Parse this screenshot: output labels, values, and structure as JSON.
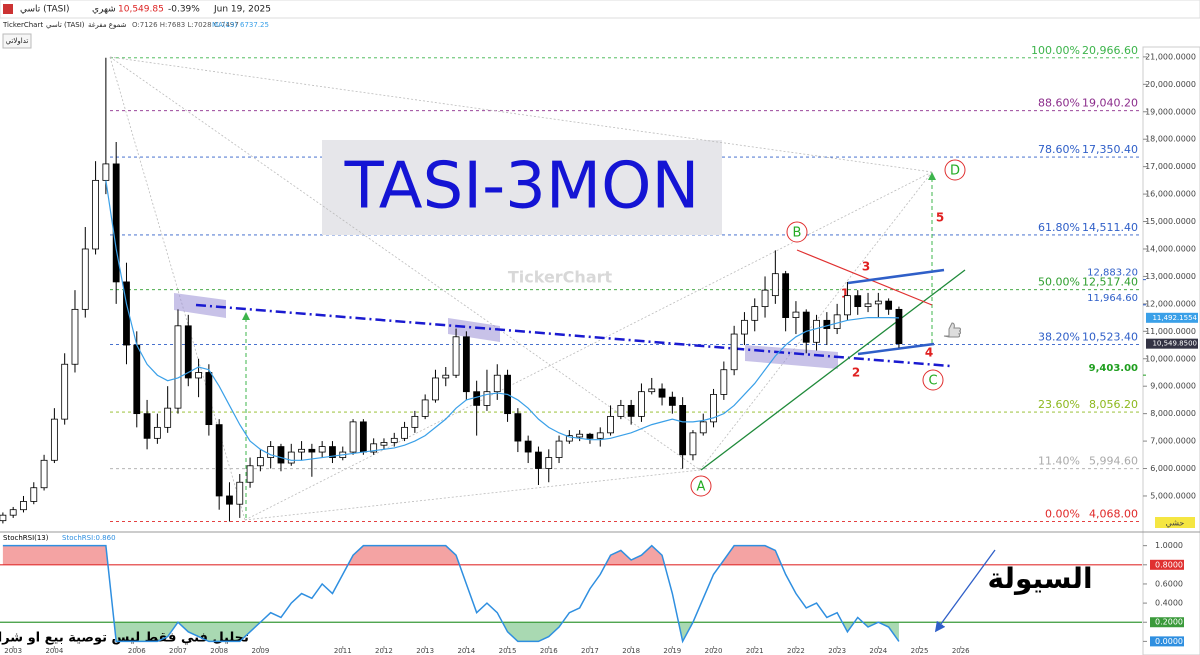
{
  "header": {
    "symbol": "تاسي (TASI)",
    "period": "شهري",
    "price": "10,549.85",
    "change": "-0.39%",
    "date": "Jun 19, 2025",
    "source": "TickerChart",
    "name": "تاسي (TASI)",
    "style": "شموع مفرغة",
    "ohlc": "O:7126 H:7683 L:7028 C:7497",
    "ma_value": "6737.25",
    "button": "تداولاتي"
  },
  "annotations": {
    "title": "TASI-3MON",
    "watermark": "TickerChart",
    "waves": [
      "A",
      "B",
      "C",
      "D"
    ],
    "counts": [
      "1",
      "2",
      "3",
      "4",
      "5"
    ],
    "liquidity": "السيولة",
    "disclaimer": "تحليل فني فقط ليس توصية بيع او شراء",
    "corner": "حشي"
  },
  "chart_data": [
    {
      "type": "candlestick",
      "x": [
        2002.75,
        2003,
        2003.25,
        2003.5,
        2003.75,
        2004,
        2004.25,
        2004.5,
        2004.75,
        2005,
        2005.25,
        2005.5,
        2005.75,
        2006,
        2006.25,
        2006.5,
        2006.75,
        2007,
        2007.25,
        2007.5,
        2007.75,
        2008,
        2008.25,
        2008.5,
        2008.75,
        2009,
        2009.25,
        2009.5,
        2009.75,
        2010,
        2010.25,
        2010.5,
        2010.75,
        2011,
        2011.25,
        2011.5,
        2011.75,
        2012,
        2012.25,
        2012.5,
        2012.75,
        2013,
        2013.25,
        2013.5,
        2013.75,
        2014,
        2014.25,
        2014.5,
        2014.75,
        2015,
        2015.25,
        2015.5,
        2015.75,
        2016,
        2016.25,
        2016.5,
        2016.75,
        2017,
        2017.25,
        2017.5,
        2017.75,
        2018,
        2018.25,
        2018.5,
        2018.75,
        2019,
        2019.25,
        2019.5,
        2019.75,
        2020,
        2020.25,
        2020.5,
        2020.75,
        2021,
        2021.25,
        2021.5,
        2021.75,
        2022,
        2022.25,
        2022.5,
        2022.75,
        2023,
        2023.25,
        2023.5,
        2023.75,
        2024,
        2024.25,
        2024.5
      ],
      "open": [
        4100,
        4300,
        4500,
        4800,
        5300,
        6300,
        7800,
        9800,
        11800,
        14000,
        16500,
        17100,
        12800,
        10500,
        8000,
        7100,
        7500,
        8200,
        11200,
        9300,
        9500,
        7600,
        5000,
        4700,
        5500,
        6100,
        6400,
        6800,
        6200,
        6600,
        6700,
        6600,
        6800,
        6400,
        6600,
        7700,
        6600,
        6850,
        6950,
        7100,
        7500,
        7900,
        8500,
        9300,
        9400,
        10800,
        8800,
        8300,
        8800,
        9400,
        8000,
        7000,
        6600,
        6000,
        6400,
        7000,
        7150,
        7250,
        7100,
        7300,
        7900,
        8300,
        7900,
        8800,
        8900,
        8600,
        8300,
        6500,
        7300,
        7700,
        8700,
        9600,
        10900,
        11400,
        11900,
        12300,
        13100,
        11500,
        11700,
        10600,
        11400,
        11100,
        11600,
        12300,
        11900,
        12000,
        12100,
        11800
      ],
      "high": [
        4400,
        4600,
        5000,
        5500,
        6500,
        8200,
        10200,
        12500,
        14800,
        17200,
        20966.6,
        17900,
        13500,
        11000,
        8500,
        8000,
        9000,
        11800,
        11600,
        10000,
        9800,
        7800,
        5500,
        5800,
        6400,
        6700,
        7000,
        6900,
        6900,
        7000,
        6900,
        7000,
        7000,
        6800,
        7800,
        7800,
        7100,
        7100,
        7300,
        7700,
        8100,
        8700,
        9600,
        9700,
        11100,
        11000,
        9200,
        9600,
        9800,
        9600,
        8200,
        7200,
        6800,
        6700,
        7200,
        7400,
        7400,
        7300,
        7500,
        8300,
        8500,
        8500,
        9100,
        9300,
        9100,
        8800,
        8600,
        7400,
        8000,
        8900,
        9900,
        11200,
        11700,
        12200,
        13000,
        13950,
        13200,
        12100,
        11800,
        11600,
        11700,
        12000,
        12800,
        12500,
        12400,
        12400,
        12200,
        11900
      ],
      "low": [
        4000,
        4200,
        4400,
        4700,
        5200,
        6200,
        7600,
        9500,
        11500,
        13800,
        16000,
        12000,
        9800,
        7500,
        6700,
        6900,
        7300,
        8000,
        9000,
        8600,
        7200,
        4500,
        4068,
        4200,
        5300,
        5900,
        6000,
        5900,
        6100,
        6300,
        5700,
        6400,
        6200,
        6300,
        6500,
        6500,
        6500,
        6700,
        6800,
        7000,
        7300,
        7800,
        8400,
        9000,
        9300,
        8500,
        7200,
        8100,
        8500,
        7700,
        6600,
        6200,
        5400,
        5500,
        6200,
        6900,
        7000,
        6900,
        6800,
        7200,
        7800,
        7600,
        7700,
        8700,
        8300,
        8000,
        5994.6,
        6300,
        7200,
        7500,
        8500,
        9400,
        10500,
        11000,
        11500,
        12000,
        11000,
        10900,
        10200,
        10300,
        10500,
        10900,
        11400,
        11600,
        11700,
        11500,
        11600,
        10400
      ],
      "close": [
        4300,
        4500,
        4800,
        5300,
        6300,
        7800,
        9800,
        11800,
        14000,
        16500,
        17100,
        12800,
        10500,
        8000,
        7100,
        7500,
        8200,
        11200,
        9300,
        9500,
        7600,
        5000,
        4700,
        5500,
        6100,
        6400,
        6800,
        6200,
        6600,
        6700,
        6600,
        6800,
        6400,
        6600,
        7700,
        6600,
        6900,
        6950,
        7100,
        7500,
        7900,
        8500,
        9300,
        9400,
        10800,
        8800,
        8300,
        8800,
        9400,
        8000,
        7000,
        6600,
        6000,
        6400,
        7000,
        7200,
        7250,
        7100,
        7300,
        7900,
        8300,
        7900,
        8800,
        8900,
        8600,
        8300,
        6500,
        7300,
        7700,
        8700,
        9600,
        10900,
        11400,
        11900,
        12500,
        13100,
        11500,
        11700,
        10600,
        11400,
        11100,
        11600,
        12300,
        11900,
        12000,
        12100,
        11800,
        10550
      ],
      "up_color": "#ffffff",
      "down_color": "#000000",
      "ma": {
        "name": "MA(13)",
        "color": "#3aa0e8",
        "values": [
          null,
          null,
          null,
          null,
          null,
          null,
          null,
          null,
          null,
          null,
          16500,
          14000,
          12000,
          10500,
          9800,
          9400,
          9200,
          9300,
          9500,
          9700,
          9600,
          9000,
          8300,
          7600,
          7000,
          6700,
          6500,
          6400,
          6300,
          6300,
          6350,
          6400,
          6450,
          6500,
          6550,
          6600,
          6650,
          6700,
          6750,
          6850,
          7000,
          7200,
          7500,
          7800,
          8200,
          8500,
          8600,
          8700,
          8750,
          8700,
          8500,
          8200,
          7800,
          7500,
          7300,
          7150,
          7100,
          7050,
          7050,
          7100,
          7200,
          7300,
          7450,
          7600,
          7700,
          7800,
          7700,
          7700,
          7750,
          7850,
          8000,
          8300,
          8700,
          9100,
          9600,
          10100,
          10500,
          10800,
          11000,
          11100,
          11200,
          11300,
          11400,
          11450,
          11500,
          11500,
          11500,
          11490
        ]
      },
      "xlim": [
        2002.68,
        2030.4
      ],
      "xticks": [
        2003,
        2004,
        2006,
        2007,
        2008,
        2009,
        2011,
        2012,
        2013,
        2014,
        2015,
        2016,
        2017,
        2018,
        2019,
        2020,
        2021,
        2022,
        2023,
        2024,
        2025,
        2026
      ],
      "ylim": [
        3760,
        21360
      ],
      "yticks": [
        {
          "value": 5000,
          "label": "5,000.0000"
        },
        {
          "value": 6000,
          "label": "6,000.0000"
        },
        {
          "value": 7000,
          "label": "7,000.0000"
        },
        {
          "value": 8000,
          "label": "8,000.0000"
        },
        {
          "value": 9000,
          "label": "9,000.0000"
        },
        {
          "value": 10000,
          "label": "10,000.0000"
        },
        {
          "value": 11000,
          "label": "11,000.0000"
        },
        {
          "value": 12000,
          "label": "12,000.0000"
        },
        {
          "value": 13000,
          "label": "13,000.0000"
        },
        {
          "value": 14000,
          "label": "14,000.0000"
        },
        {
          "value": 15000,
          "label": "15,000.0000"
        },
        {
          "value": 16000,
          "label": "16,000.0000"
        },
        {
          "value": 17000,
          "label": "17,000.0000"
        },
        {
          "value": 18000,
          "label": "18,000.0000"
        },
        {
          "value": 19000,
          "label": "19,000.0000"
        },
        {
          "value": 20000,
          "label": "20,000.0000"
        },
        {
          "value": 21000,
          "label": "21,000.0000"
        }
      ],
      "fib": [
        {
          "name": "100.00%",
          "value": 20966.6,
          "value_label": "20,966.60",
          "color": "#3cb44b"
        },
        {
          "name": "88.60%",
          "value": 19040.2,
          "value_label": "19,040.20",
          "color": "#8b2c8b"
        },
        {
          "name": "78.60%",
          "value": 17350.4,
          "value_label": "17,350.40",
          "color": "#2f5fc8"
        },
        {
          "name": "61.80%",
          "value": 14511.4,
          "value_label": "14,511.40",
          "color": "#2f5fc8"
        },
        {
          "name": "50.00%",
          "value": 12517.4,
          "value_label": "12,517.40",
          "color": "#2e9e2e"
        },
        {
          "name": "38.20%",
          "value": 10523.4,
          "value_label": "10,523.40",
          "color": "#2f5fc8"
        },
        {
          "name": "23.60%",
          "value": 8056.2,
          "value_label": "8,056.20",
          "color": "#8db81e"
        },
        {
          "name": "11.40%",
          "value": 5994.6,
          "value_label": "5,994.60",
          "color": "#aaaaaa"
        },
        {
          "name": "0.00%",
          "value": 4068,
          "value_label": "4,068.00",
          "color": "#e02828"
        }
      ],
      "price_tags": [
        {
          "value": 12883.2,
          "label": "12,883.20",
          "color": "#2f5fc8",
          "box": null
        },
        {
          "value": 11964.6,
          "label": "11,964.60",
          "color": "#2f5fc8",
          "box": null
        },
        {
          "value": 11492.1554,
          "label": "11,492.1554",
          "color": "#ffffff",
          "box": "#3aa0e8"
        },
        {
          "value": 10549.85,
          "label": "10,549.8500",
          "color": "#ffffff",
          "box": "#333344"
        },
        {
          "value": 9403,
          "label": "9,403.00",
          "color": "#1e9e1e",
          "box": null
        }
      ]
    },
    {
      "type": "line",
      "title": "StochRSI(13)",
      "series": [
        {
          "name": "StochRSI:0.860",
          "color": "#2f8fe0",
          "values": [
            1,
            1,
            1,
            1,
            1,
            1,
            1,
            1,
            1,
            1,
            1,
            0,
            0,
            0,
            0,
            0,
            0.05,
            0.2,
            0.1,
            0.05,
            0,
            0,
            0,
            0,
            0.1,
            0.2,
            0.3,
            0.25,
            0.4,
            0.5,
            0.45,
            0.6,
            0.5,
            0.7,
            0.9,
            1,
            1,
            1,
            1,
            1,
            1,
            1,
            1,
            1,
            0.9,
            0.6,
            0.3,
            0.4,
            0.3,
            0.1,
            0,
            0,
            0,
            0.05,
            0.15,
            0.3,
            0.35,
            0.55,
            0.7,
            0.9,
            0.95,
            0.85,
            0.9,
            1,
            0.9,
            0.5,
            0,
            0.2,
            0.45,
            0.7,
            0.85,
            1,
            1,
            1,
            1,
            0.95,
            0.7,
            0.5,
            0.35,
            0.4,
            0.25,
            0.3,
            0.1,
            0.25,
            0.15,
            0.2,
            0.15,
            0
          ]
        }
      ],
      "ylim": [
        -0.09,
        1.08
      ],
      "yticks": [
        {
          "value": 1,
          "label": "1.0000"
        },
        {
          "value": 0.8,
          "label": "0.8000"
        },
        {
          "value": 0.6,
          "label": "0.6000"
        },
        {
          "value": 0.4,
          "label": "0.4000"
        },
        {
          "value": 0.2,
          "label": "0.2000"
        },
        {
          "value": 0,
          "label": "0.0000"
        }
      ],
      "hlines": [
        {
          "value": 0.8,
          "color": "#e03030",
          "fill": "#f4a3a3"
        },
        {
          "value": 0.2,
          "color": "#3a9a3a",
          "fill": "#a9d9b2"
        }
      ]
    }
  ]
}
